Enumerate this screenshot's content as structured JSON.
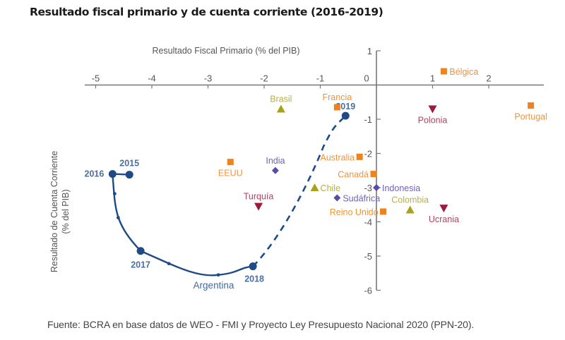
{
  "title": "Resultado fiscal primario y de cuenta corriente (2016-2019)",
  "source": "Fuente: BCRA en base datos de WEO - FMI y Proyecto Ley Presupuesto Nacional 2020 (PPN-20).",
  "chart_data": {
    "type": "scatter",
    "title": "Resultado fiscal primario y de cuenta corriente (2016-2019)",
    "xlabel": "Resultado Fiscal Primario (% del PIB)",
    "ylabel": "Resultado de Cuenta Corriente (% del PIB)",
    "ylabel_lines": [
      "Resultado de Cuenta Corriente",
      "(% del PIB)"
    ],
    "xlim": [
      -5.0,
      3.0
    ],
    "ylim": [
      -6,
      1
    ],
    "xticks": [
      -5,
      -4,
      -3,
      -2,
      -1,
      0,
      1,
      2
    ],
    "xtick_labels": [
      "-5",
      "-4",
      "-3",
      "-2",
      "-1",
      "0",
      "1",
      "2"
    ],
    "yticks": [
      1,
      -1,
      -2,
      -3,
      -4,
      -5,
      -6
    ],
    "ytick_labels": [
      "1",
      "-1",
      "-2",
      "-3",
      "-4",
      "-5",
      "-6"
    ],
    "origin_label": "0",
    "grid": false,
    "colors": {
      "orange": "#f0821e",
      "olive": "#a8a21a",
      "purple": "#5b4ba8",
      "crimson": "#9c1a3c",
      "navy": "#1f4a86",
      "axis": "#777777",
      "tick_text": "#555555"
    },
    "argentina": {
      "label": "Argentina",
      "points": [
        {
          "year": "2015",
          "x": -4.4,
          "y": -2.62
        },
        {
          "year": "2016",
          "x": -4.7,
          "y": -2.6
        },
        {
          "year": "2017",
          "x": -4.2,
          "y": -4.85
        },
        {
          "year": "2018",
          "x": -2.2,
          "y": -5.3
        },
        {
          "year": "2019",
          "x": -0.55,
          "y": -0.9
        }
      ],
      "solid_segment_years": [
        "2015",
        "2016",
        "2017",
        "2018"
      ],
      "dashed_segment_years": [
        "2018",
        "2019"
      ]
    },
    "countries": [
      {
        "name": "Bélgica",
        "x": 1.2,
        "y": 0.4,
        "marker": "square",
        "color": "orange",
        "label_pos": "right"
      },
      {
        "name": "Portugal",
        "x": 2.75,
        "y": -0.6,
        "marker": "square",
        "color": "orange",
        "label_pos": "below"
      },
      {
        "name": "Polonia",
        "x": 1.0,
        "y": -0.7,
        "marker": "triangle-down",
        "color": "crimson",
        "label_pos": "below"
      },
      {
        "name": "Francia",
        "x": -0.7,
        "y": -0.65,
        "marker": "square",
        "color": "orange",
        "label_pos": "above"
      },
      {
        "name": "Brasil",
        "x": -1.7,
        "y": -0.7,
        "marker": "triangle-up",
        "color": "olive",
        "label_pos": "above"
      },
      {
        "name": "Australia",
        "x": -0.3,
        "y": -2.1,
        "marker": "square",
        "color": "orange",
        "label_pos": "left"
      },
      {
        "name": "EEUU",
        "x": -2.6,
        "y": -2.25,
        "marker": "square",
        "color": "orange",
        "label_pos": "below"
      },
      {
        "name": "India",
        "x": -1.8,
        "y": -2.5,
        "marker": "diamond",
        "color": "purple",
        "label_pos": "above"
      },
      {
        "name": "Canadá",
        "x": -0.05,
        "y": -2.6,
        "marker": "square",
        "color": "orange",
        "label_pos": "left"
      },
      {
        "name": "Chile",
        "x": -1.1,
        "y": -3.0,
        "marker": "triangle-up",
        "color": "olive",
        "label_pos": "right"
      },
      {
        "name": "Indonesia",
        "x": 0.0,
        "y": -3.0,
        "marker": "diamond",
        "color": "purple",
        "label_pos": "right"
      },
      {
        "name": "Sudáfrica",
        "x": -0.7,
        "y": -3.3,
        "marker": "diamond",
        "color": "purple",
        "label_pos": "right"
      },
      {
        "name": "Turquía",
        "x": -2.1,
        "y": -3.55,
        "marker": "triangle-down",
        "color": "crimson",
        "label_pos": "above"
      },
      {
        "name": "Reino Unido",
        "x": 0.12,
        "y": -3.7,
        "marker": "square",
        "color": "orange",
        "label_pos": "left"
      },
      {
        "name": "Colombia",
        "x": 0.6,
        "y": -3.65,
        "marker": "triangle-up",
        "color": "olive",
        "label_pos": "above"
      },
      {
        "name": "Ucrania",
        "x": 1.2,
        "y": -3.6,
        "marker": "triangle-down",
        "color": "crimson",
        "label_pos": "below"
      }
    ]
  }
}
